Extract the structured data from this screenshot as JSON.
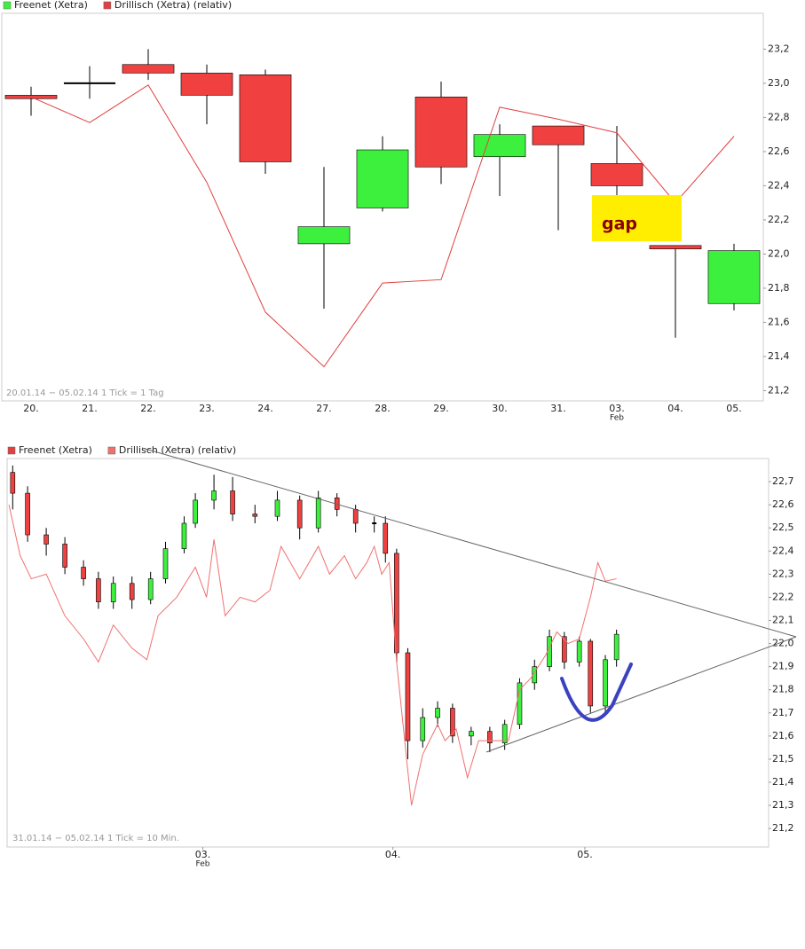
{
  "chart_data": [
    {
      "type": "candlestick",
      "categories": [
        "20.",
        "21.",
        "22.",
        "23.",
        "24.",
        "27.",
        "28.",
        "29.",
        "30.",
        "31.",
        "03.",
        "04.",
        "05."
      ],
      "x_sublabels": [
        null,
        null,
        null,
        null,
        null,
        null,
        null,
        null,
        null,
        null,
        "Feb",
        null,
        null
      ],
      "up_color": "#3ef03e",
      "down_color": "#f04040",
      "flat_color": "#000000",
      "series": [
        {
          "name": "Freenet (Xetra)",
          "color": "#3ef03e",
          "open": [
            22.93,
            23.0,
            23.11,
            23.06,
            23.05,
            22.06,
            22.27,
            22.92,
            22.57,
            22.75,
            22.53,
            22.05,
            21.71
          ],
          "high": [
            22.98,
            23.1,
            23.2,
            23.11,
            23.08,
            22.51,
            22.69,
            23.01,
            22.76,
            22.75,
            22.75,
            22.05,
            22.06
          ],
          "low": [
            22.81,
            22.91,
            23.02,
            22.76,
            22.47,
            21.68,
            22.25,
            22.41,
            22.34,
            22.14,
            22.32,
            21.51,
            21.67
          ],
          "close": [
            22.91,
            23.0,
            23.06,
            22.93,
            22.54,
            22.16,
            22.61,
            22.51,
            22.7,
            22.64,
            22.4,
            22.03,
            22.02
          ]
        },
        {
          "name": "Drillisch (Xetra) (relativ)",
          "color": "#e0403f",
          "values": [
            22.92,
            22.77,
            22.99,
            22.42,
            21.66,
            21.34,
            21.83,
            21.85,
            22.86,
            22.79,
            22.71,
            22.3,
            22.69
          ]
        }
      ],
      "ylim": [
        21.14,
        23.41
      ],
      "yticks": [
        {
          "value": 21.2,
          "label": "21,2"
        },
        {
          "value": 21.4,
          "label": "21,4"
        },
        {
          "value": 21.6,
          "label": "21,6"
        },
        {
          "value": 21.8,
          "label": "21,8"
        },
        {
          "value": 22.0,
          "label": "22,0"
        },
        {
          "value": 22.2,
          "label": "22,2"
        },
        {
          "value": 22.4,
          "label": "22,4"
        },
        {
          "value": 22.6,
          "label": "22,6"
        },
        {
          "value": 22.8,
          "label": "22,8"
        },
        {
          "value": 23.0,
          "label": "23,0"
        },
        {
          "value": 23.2,
          "label": "23,2"
        }
      ],
      "footer": "20.01.14 − 05.02.14   1 Tick = 1 Tag",
      "annotation": "gap"
    },
    {
      "type": "candlestick",
      "xlim": [
        -0.5,
        203.8
      ],
      "xticks": [
        {
          "value": 52,
          "label": "03.",
          "sublabel": "Feb"
        },
        {
          "value": 103,
          "label": "04."
        },
        {
          "value": 154.5,
          "label": "05."
        }
      ],
      "up_color": "#3ef03e",
      "down_color": "#f04040",
      "flat_color": "#000000",
      "series": [
        {
          "name": "Freenet (Xetra)",
          "color": "#e04040",
          "x": [
            1,
            5,
            10,
            15,
            20,
            24,
            28,
            33,
            38,
            42,
            47,
            50,
            55,
            60,
            66,
            72,
            78,
            83,
            88,
            93,
            98,
            101,
            104,
            107,
            111,
            115,
            119,
            124,
            129,
            133,
            137,
            141,
            145,
            149,
            153,
            156,
            160,
            163
          ],
          "open": [
            22.74,
            22.65,
            22.47,
            22.43,
            22.33,
            22.28,
            22.18,
            22.26,
            22.19,
            22.28,
            22.41,
            22.52,
            22.62,
            22.66,
            22.56,
            22.55,
            22.62,
            22.5,
            22.63,
            22.58,
            22.52,
            22.52,
            22.39,
            21.96,
            21.58,
            21.68,
            21.72,
            21.6,
            21.62,
            21.57,
            21.65,
            21.83,
            21.9,
            22.03,
            21.92,
            22.01,
            21.73,
            21.93
          ],
          "high": [
            22.77,
            22.68,
            22.5,
            22.46,
            22.36,
            22.31,
            22.29,
            22.29,
            22.31,
            22.44,
            22.55,
            22.65,
            22.73,
            22.72,
            22.6,
            22.66,
            22.64,
            22.66,
            22.65,
            22.6,
            22.55,
            22.55,
            22.41,
            21.98,
            21.72,
            21.75,
            21.74,
            21.64,
            21.64,
            21.67,
            21.85,
            21.93,
            22.06,
            22.05,
            22.03,
            22.02,
            21.95,
            22.06
          ],
          "low": [
            22.58,
            22.44,
            22.38,
            22.3,
            22.25,
            22.15,
            22.15,
            22.15,
            22.17,
            22.26,
            22.39,
            22.5,
            22.58,
            22.53,
            22.52,
            22.53,
            22.45,
            22.48,
            22.55,
            22.48,
            22.48,
            22.35,
            21.92,
            21.5,
            21.55,
            21.64,
            21.57,
            21.56,
            21.53,
            21.54,
            21.63,
            21.8,
            21.88,
            21.89,
            21.9,
            21.7,
            21.7,
            21.9
          ],
          "close": [
            22.65,
            22.47,
            22.43,
            22.33,
            22.28,
            22.18,
            22.26,
            22.19,
            22.28,
            22.41,
            22.52,
            22.62,
            22.66,
            22.56,
            22.55,
            22.62,
            22.5,
            22.63,
            22.58,
            22.52,
            22.52,
            22.39,
            21.96,
            21.58,
            21.68,
            21.72,
            21.6,
            21.62,
            21.57,
            21.65,
            21.83,
            21.9,
            22.03,
            21.92,
            22.01,
            21.73,
            21.93,
            22.04
          ]
        },
        {
          "name": "Drillisch (Xetra) (relativ)",
          "color": "#f07070",
          "x": [
            0,
            3,
            6,
            10,
            15,
            20,
            24,
            28,
            33,
            37,
            40,
            45,
            50,
            53,
            55,
            58,
            62,
            66,
            70,
            73,
            78,
            83,
            86,
            90,
            93,
            96,
            98,
            100,
            102,
            104,
            107,
            108,
            111,
            115,
            117,
            120,
            123,
            126,
            130,
            134,
            137,
            140,
            144,
            147,
            150,
            153,
            156,
            158,
            160,
            163
          ],
          "values": [
            22.6,
            22.38,
            22.28,
            22.3,
            22.12,
            22.02,
            21.92,
            22.08,
            21.98,
            21.93,
            22.12,
            22.2,
            22.33,
            22.2,
            22.45,
            22.12,
            22.2,
            22.18,
            22.23,
            22.42,
            22.28,
            22.42,
            22.3,
            22.38,
            22.28,
            22.35,
            22.42,
            22.3,
            22.35,
            21.92,
            21.45,
            21.3,
            21.52,
            21.65,
            21.58,
            21.63,
            21.42,
            21.58,
            21.58,
            21.58,
            21.8,
            21.85,
            21.95,
            22.05,
            22.0,
            22.02,
            22.2,
            22.35,
            22.27,
            22.28
          ]
        }
      ],
      "ylim": [
        21.12,
        22.8
      ],
      "yticks": [
        {
          "value": 21.2,
          "label": "21,2"
        },
        {
          "value": 21.3,
          "label": "21,3"
        },
        {
          "value": 21.4,
          "label": "21,4"
        },
        {
          "value": 21.5,
          "label": "21,5"
        },
        {
          "value": 21.6,
          "label": "21,6"
        },
        {
          "value": 21.7,
          "label": "21,7"
        },
        {
          "value": 21.8,
          "label": "21,8"
        },
        {
          "value": 21.9,
          "label": "21,9"
        },
        {
          "value": 22.0,
          "label": "22,0"
        },
        {
          "value": 22.1,
          "label": "22,1"
        },
        {
          "value": 22.2,
          "label": "22,2"
        },
        {
          "value": 22.3,
          "label": "22,3"
        },
        {
          "value": 22.4,
          "label": "22,4"
        },
        {
          "value": 22.5,
          "label": "22,5"
        },
        {
          "value": 22.6,
          "label": "22,6"
        },
        {
          "value": 22.7,
          "label": "22,7"
        }
      ],
      "footer": "31.01.14 − 05.02.14   1 Tick = 10 Min."
    }
  ]
}
